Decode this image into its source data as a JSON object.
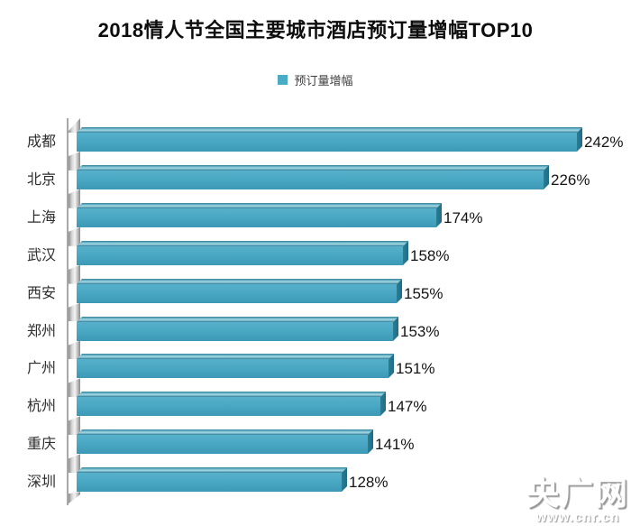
{
  "chart_data": {
    "type": "bar",
    "orientation": "horizontal",
    "title": "2018情人节全国主要城市酒店预订量增幅TOP10",
    "legend": [
      {
        "label": "预订量增幅",
        "color": "#4bacc6"
      }
    ],
    "legend_position": "top-center",
    "categories": [
      "成都",
      "北京",
      "上海",
      "武汉",
      "西安",
      "郑州",
      "广州",
      "杭州",
      "重庆",
      "深圳"
    ],
    "values": [
      242,
      226,
      174,
      158,
      155,
      153,
      151,
      147,
      141,
      128
    ],
    "value_labels": [
      "242%",
      "226%",
      "174%",
      "158%",
      "155%",
      "153%",
      "151%",
      "147%",
      "141%",
      "128%"
    ],
    "unit": "%",
    "xlim": [
      0,
      260
    ],
    "grid": false,
    "style": "3d-beveled-bars",
    "bar_color": "#4bacc6",
    "bar_side_color": "#1f6c86",
    "axis_wall_color": "#c9c9c9"
  },
  "watermark": {
    "brand": "央广网",
    "url": "www.cnr.cn"
  }
}
